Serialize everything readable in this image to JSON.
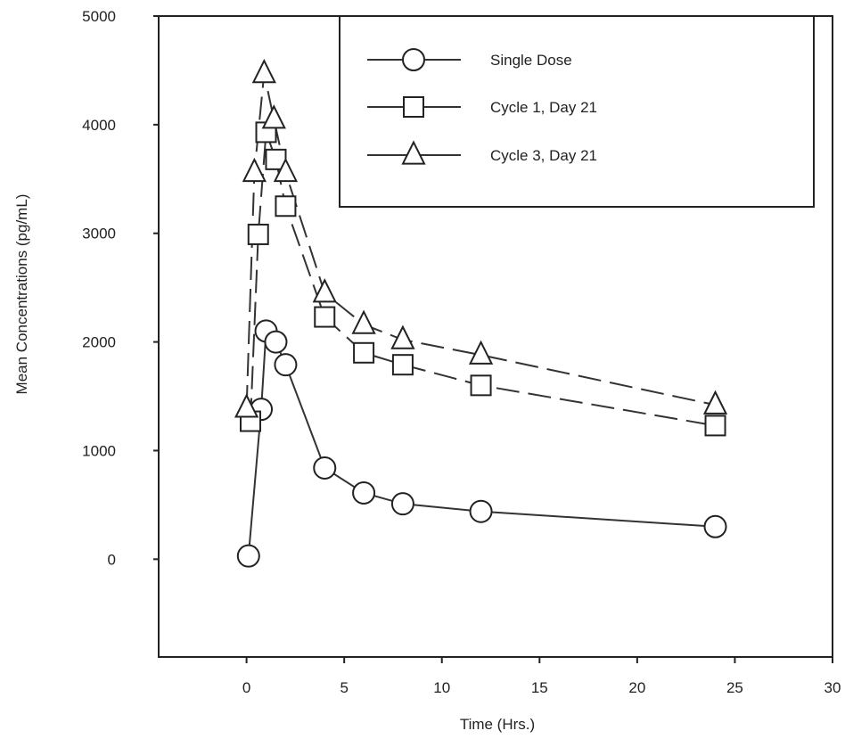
{
  "chart_data": {
    "type": "line",
    "title": "",
    "xlabel": "Time (Hrs.)",
    "ylabel": "Mean Concentrations (pg/mL)",
    "xlim": [
      -4.5,
      30
    ],
    "ylim": [
      -900,
      5000
    ],
    "xticks": [
      0,
      5,
      10,
      15,
      20,
      25,
      30
    ],
    "yticks": [
      0,
      1000,
      2000,
      3000,
      4000,
      5000
    ],
    "grid": false,
    "legend_position": "top-right",
    "series": [
      {
        "name": "Single Dose",
        "marker": "circle",
        "line": "solid",
        "x": [
          0.1,
          0.75,
          1.0,
          1.5,
          2.0,
          4.0,
          6.0,
          8.0,
          12.0,
          24.0
        ],
        "y": [
          30,
          1380,
          2100,
          2000,
          1790,
          840,
          610,
          510,
          440,
          300
        ]
      },
      {
        "name": "Cycle 1, Day 21",
        "marker": "square",
        "line": "dashed",
        "x": [
          0.2,
          0.6,
          1.0,
          1.5,
          2.0,
          4.0,
          6.0,
          8.0,
          12.0,
          24.0
        ],
        "y": [
          1270,
          2990,
          3930,
          3680,
          3250,
          2230,
          1900,
          1790,
          1600,
          1230
        ]
      },
      {
        "name": "Cycle 3, Day 21",
        "marker": "triangle",
        "line": "dashed",
        "x": [
          0.0,
          0.4,
          0.9,
          1.4,
          2.0,
          4.0,
          6.0,
          8.0,
          12.0,
          24.0
        ],
        "y": [
          1390,
          3560,
          4470,
          4050,
          3560,
          2450,
          2160,
          2020,
          1880,
          1420
        ]
      }
    ]
  }
}
